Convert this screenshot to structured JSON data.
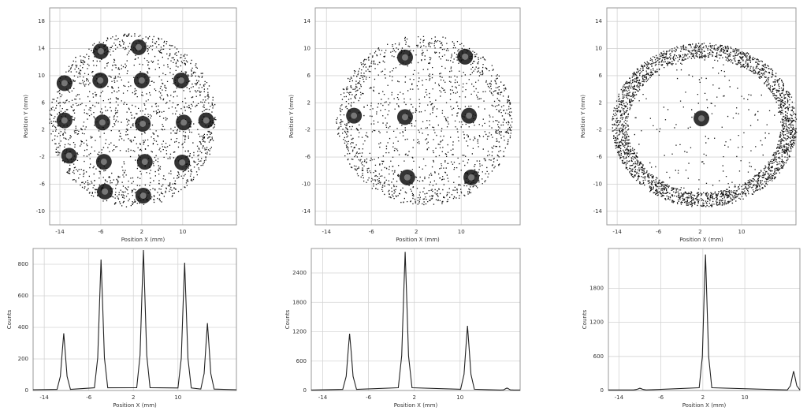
{
  "chart_data": [
    {
      "type": "scatter",
      "x_label": "Position X (mm)",
      "y_label": "Position Y (mm)",
      "grid": true,
      "color": "#111111",
      "xlim": [
        -16,
        20.5
      ],
      "ylim": [
        -12,
        20
      ],
      "xticks": [
        -14,
        -6,
        2,
        10
      ],
      "yticks": [
        18,
        14,
        10,
        6,
        2,
        -2,
        -6,
        -10
      ],
      "x": [
        -6.0,
        1.4,
        -13.1,
        -6.1,
        2.0,
        9.7,
        -13.1,
        -5.7,
        2.2,
        10.2,
        14.6,
        -12.2,
        -5.4,
        2.6,
        9.9,
        -5.2,
        2.3
      ],
      "y": [
        13.6,
        14.2,
        8.9,
        9.3,
        9.3,
        9.3,
        3.4,
        3.1,
        2.9,
        3.1,
        3.4,
        -1.8,
        -2.7,
        -2.7,
        -2.8,
        -7.1,
        -7.7
      ]
    },
    {
      "type": "scatter",
      "x_label": "Position X (mm)",
      "y_label": "Position Y (mm)",
      "grid": true,
      "color": "#111111",
      "xlim": [
        -16,
        20.5
      ],
      "ylim": [
        -16,
        16
      ],
      "xticks": [
        -14,
        -6,
        2,
        10
      ],
      "yticks": [
        14,
        10,
        6,
        2,
        -2,
        -6,
        -10,
        -14
      ],
      "x": [
        0.0,
        10.7,
        -9.1,
        0.0,
        11.4,
        0.4,
        11.8
      ],
      "y": [
        8.7,
        8.8,
        0.1,
        -0.1,
        0.1,
        -9.0,
        -9.0
      ]
    },
    {
      "type": "scatter",
      "x_label": "Position X (mm)",
      "y_label": "Position Y (mm)",
      "grid": true,
      "color": "#111111",
      "xlim": [
        -16,
        20.5
      ],
      "ylim": [
        -16,
        16
      ],
      "xticks": [
        -14,
        -6,
        2,
        10
      ],
      "yticks": [
        14,
        10,
        6,
        2,
        -2,
        -6,
        -10,
        -14
      ],
      "x": [
        2.25
      ],
      "y": [
        -0.3
      ]
    },
    {
      "type": "line",
      "x_label": "Position X (mm)",
      "y_label": "Counts",
      "grid": true,
      "color": "#222222",
      "xlim": [
        -16,
        20.5
      ],
      "ylim": [
        0,
        900
      ],
      "xticks": [
        -14,
        -6,
        2,
        10
      ],
      "yticks": [
        0,
        200,
        400,
        600,
        800
      ],
      "x": [
        -16,
        -11.7,
        -11.1,
        -10.75,
        -10.5,
        -10.25,
        -9.9,
        -9.3,
        -5.0,
        -4.4,
        -4.05,
        -3.8,
        -3.55,
        -3.2,
        -2.6,
        2.6,
        3.2,
        3.55,
        3.8,
        4.05,
        4.4,
        5.0,
        10.0,
        10.6,
        10.95,
        11.2,
        11.45,
        11.8,
        12.4,
        14.1,
        14.7,
        15.05,
        15.3,
        15.55,
        15.9,
        16.5,
        20.5
      ],
      "values": [
        5,
        7,
        90,
        253,
        362,
        253,
        90,
        7,
        17,
        208,
        581,
        830,
        581,
        208,
        17,
        18,
        223,
        623,
        890,
        623,
        223,
        18,
        16,
        203,
        567,
        810,
        567,
        203,
        16,
        9,
        107,
        299,
        427,
        299,
        107,
        9,
        5
      ]
    },
    {
      "type": "line",
      "x_label": "Position X (mm)",
      "y_label": "Counts",
      "grid": true,
      "color": "#222222",
      "xlim": [
        -16,
        20.5
      ],
      "ylim": [
        0,
        2900
      ],
      "xticks": [
        -14,
        -6,
        2,
        10
      ],
      "yticks": [
        0,
        600,
        1200,
        1800,
        2400
      ],
      "x": [
        -16,
        -10.5,
        -9.9,
        -9.55,
        -9.3,
        -9.05,
        -8.7,
        -8.1,
        -0.8,
        -0.2,
        0.15,
        0.4,
        0.65,
        1.0,
        1.6,
        10.1,
        10.7,
        11.05,
        11.3,
        11.55,
        11.9,
        12.5,
        17.0,
        17.6,
        17.95,
        18.2,
        18.45,
        18.8,
        19.4,
        20.5
      ],
      "values": [
        10,
        23,
        290,
        812,
        1160,
        812,
        290,
        23,
        57,
        708,
        1981,
        2830,
        1981,
        708,
        57,
        26,
        330,
        924,
        1320,
        924,
        330,
        26,
        10,
        13,
        35,
        50,
        35,
        13,
        10,
        10
      ]
    },
    {
      "type": "line",
      "x_label": "Position X (mm)",
      "y_label": "Counts",
      "grid": true,
      "color": "#222222",
      "xlim": [
        -16,
        20.5
      ],
      "ylim": [
        0,
        2500
      ],
      "xticks": [
        -14,
        -6,
        2,
        10
      ],
      "yticks": [
        0,
        600,
        1200,
        1800
      ],
      "x": [
        -16,
        -11.2,
        -10.6,
        -10.25,
        -10,
        -9.75,
        -9.4,
        -8.8,
        1.3,
        1.9,
        2.25,
        2.5,
        2.75,
        3.1,
        3.7,
        18.1,
        18.7,
        19.05,
        19.3,
        19.55,
        19.9,
        20.5
      ],
      "values": [
        10,
        10,
        20,
        32,
        40,
        32,
        20,
        10,
        48,
        599,
        1677,
        2395,
        1677,
        599,
        48,
        10,
        85,
        238,
        340,
        238,
        85,
        10
      ]
    }
  ]
}
